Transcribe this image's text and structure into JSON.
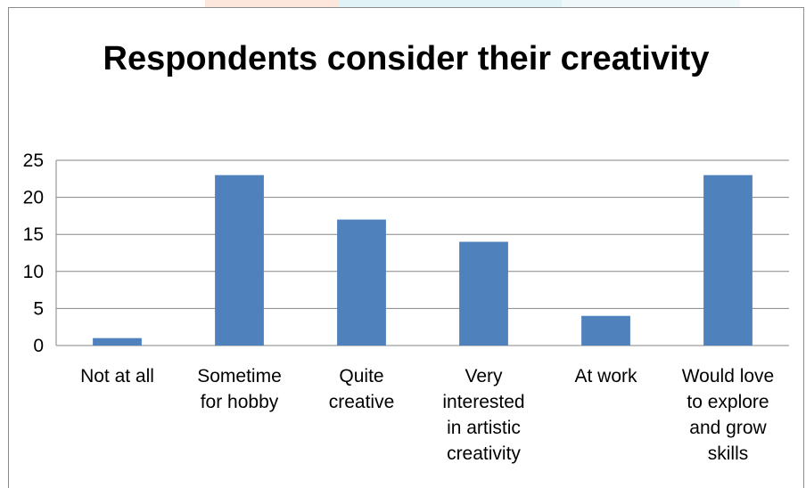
{
  "chart_data": {
    "type": "bar",
    "title": "Respondents consider their creativity",
    "categories": [
      "Not at all",
      "Sometime for hobby",
      "Quite creative",
      "Very interested in artistic creativity",
      "At work",
      "Would love to explore and grow skills"
    ],
    "category_label_lines": [
      [
        "Not at all"
      ],
      [
        "Sometime",
        "for hobby"
      ],
      [
        "Quite",
        "creative"
      ],
      [
        "Very",
        "interested",
        "in artistic",
        "creativity"
      ],
      [
        "At work"
      ],
      [
        "Would love",
        "to explore",
        "and grow",
        "skills"
      ]
    ],
    "values": [
      1,
      23,
      17,
      14,
      4,
      23
    ],
    "ylim": [
      0,
      25
    ],
    "yticks": [
      0,
      5,
      10,
      15,
      20,
      25
    ],
    "xlabel": "",
    "ylabel": "",
    "grid": true,
    "legend": "none",
    "bar_color": "#4f81bd",
    "grid_color": "#868686"
  }
}
